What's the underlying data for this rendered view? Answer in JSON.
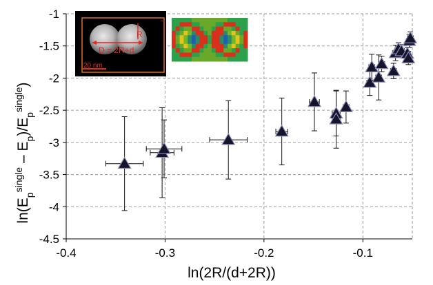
{
  "chart_data": {
    "type": "scatter",
    "title": "",
    "xlabel": "ln(2R/(d+2R))",
    "ylabel_parts": {
      "prefix": "ln(E",
      "sub1": "p",
      "sup1": "single",
      "mid": " – E",
      "sub2": "p",
      "mid2": ")/E",
      "sub3": "p",
      "sup3": "single",
      "suffix": ")"
    },
    "xlim": [
      -0.4,
      -0.05
    ],
    "ylim": [
      -4.5,
      -1
    ],
    "x_ticks": [
      -0.4,
      -0.3,
      -0.2,
      -0.1
    ],
    "x_tick_labels": [
      "-0.4",
      "-0.3",
      "-0.2",
      "-0.1"
    ],
    "y_ticks": [
      -4.5,
      -4,
      -3.5,
      -3,
      -2.5,
      -2,
      -1.5,
      -1
    ],
    "y_tick_labels": [
      "-4.5",
      "-4",
      "-3.5",
      "-3",
      "-2.5",
      "-2",
      "-1.5",
      "-1"
    ],
    "grid": true,
    "grid_style": "dashed",
    "marker": "triangle",
    "marker_color": "#15152a",
    "points": [
      {
        "x": -0.341,
        "y": -3.33,
        "xerr": 0.019,
        "yerr": 0.73
      },
      {
        "x": -0.303,
        "y": -3.16,
        "xerr": 0.012,
        "yerr": 0.7
      },
      {
        "x": -0.301,
        "y": -3.1,
        "xerr": 0.018,
        "yerr": 0.45
      },
      {
        "x": -0.236,
        "y": -2.96,
        "xerr": 0.019,
        "yerr": 0.61
      },
      {
        "x": -0.182,
        "y": -2.83,
        "xerr": 0.006,
        "yerr": 0.52
      },
      {
        "x": -0.149,
        "y": -2.37,
        "xerr": 0.005,
        "yerr": 0.45
      },
      {
        "x": -0.127,
        "y": -2.55,
        "xerr": 0.004,
        "yerr": 0.35
      },
      {
        "x": -0.127,
        "y": -2.64,
        "xerr": 0.004,
        "yerr": 0.45
      },
      {
        "x": -0.117,
        "y": -2.45,
        "xerr": 0.003,
        "yerr": 0.25
      },
      {
        "x": -0.093,
        "y": -2.07,
        "xerr": 0.003,
        "yerr": 0.2
      },
      {
        "x": -0.091,
        "y": -1.83,
        "xerr": 0.003,
        "yerr": 0.2
      },
      {
        "x": -0.084,
        "y": -1.99,
        "xerr": 0.003,
        "yerr": 0.35
      },
      {
        "x": -0.081,
        "y": -1.78,
        "xerr": 0.003,
        "yerr": 0.12
      },
      {
        "x": -0.069,
        "y": -1.89,
        "xerr": 0.003,
        "yerr": 0.12
      },
      {
        "x": -0.067,
        "y": -1.61,
        "xerr": 0.003,
        "yerr": 0.12
      },
      {
        "x": -0.064,
        "y": -1.55,
        "xerr": 0.003,
        "yerr": 0.1
      },
      {
        "x": -0.061,
        "y": -1.58,
        "xerr": 0.003,
        "yerr": 0.1
      },
      {
        "x": -0.055,
        "y": -1.62,
        "xerr": 0.003,
        "yerr": 0.1
      },
      {
        "x": -0.054,
        "y": -1.69,
        "xerr": 0.003,
        "yerr": 0.1
      },
      {
        "x": -0.053,
        "y": -1.42,
        "xerr": 0.003,
        "yerr": 0.1
      },
      {
        "x": -0.052,
        "y": -1.38,
        "xerr": 0.003,
        "yerr": 0.1
      }
    ]
  },
  "inset_micrograph": {
    "annotation_radius": "R",
    "annotation_distance": "D = 2R+d",
    "scale_bar_label": "20 nm",
    "label_color": "#e8251c",
    "frame_color": "#e07020"
  },
  "inset_field_map": {
    "colors": [
      "#1f5fb0",
      "#2aa14a",
      "#74b829",
      "#c9c81e",
      "#e6a31c",
      "#e2461c",
      "#c81f1f"
    ]
  }
}
